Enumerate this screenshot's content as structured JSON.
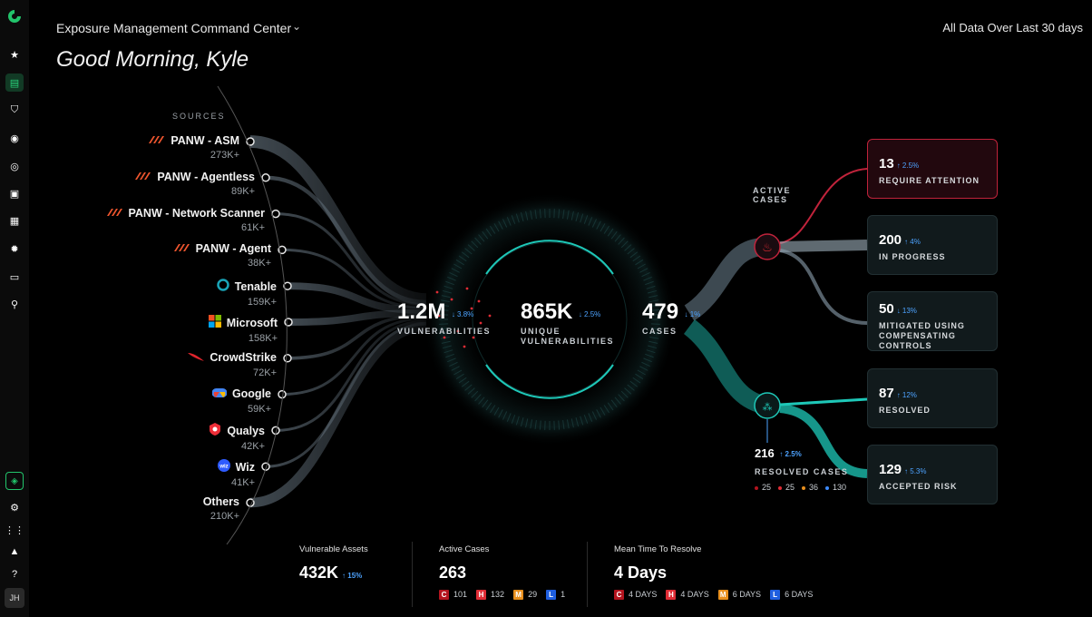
{
  "header": {
    "title": "Exposure Management Command Center",
    "range": "All Data Over Last 30 days",
    "greeting": "Good Morning, Kyle"
  },
  "sidebar": {
    "avatar": "JH"
  },
  "sources": {
    "heading": "SOURCES",
    "items": [
      {
        "name": "PANW - ASM",
        "count": "273K+",
        "logo": "panw-logo"
      },
      {
        "name": "PANW - Agentless",
        "count": "89K+",
        "logo": "panw-logo"
      },
      {
        "name": "PANW - Network Scanner",
        "count": "61K+",
        "logo": "panw-logo"
      },
      {
        "name": "PANW - Agent",
        "count": "38K+",
        "logo": "panw-logo"
      },
      {
        "name": "Tenable",
        "count": "159K+",
        "logo": "tenable-logo"
      },
      {
        "name": "Microsoft",
        "count": "158K+",
        "logo": "microsoft-logo"
      },
      {
        "name": "CrowdStrike",
        "count": "72K+",
        "logo": "crowdstrike-logo"
      },
      {
        "name": "Google",
        "count": "59K+",
        "logo": "google-logo"
      },
      {
        "name": "Qualys",
        "count": "42K+",
        "logo": "qualys-logo"
      },
      {
        "name": "Wiz",
        "count": "41K+",
        "logo": "wiz-logo"
      },
      {
        "name": "Others",
        "count": "210K+",
        "logo": ""
      }
    ]
  },
  "center": {
    "vulnerabilities": {
      "value": "1.2M",
      "delta": "↓ 3.8%",
      "label": "VULNERABILITIES"
    },
    "unique": {
      "value": "865K",
      "delta": "↓ 2.5%",
      "label1": "UNIQUE",
      "label2": "VULNERABILITIES"
    },
    "cases": {
      "value": "479",
      "delta": "↓ 1%",
      "label": "CASES"
    }
  },
  "active_cases_label": [
    "ACTIVE",
    "CASES"
  ],
  "cards": [
    {
      "value": "13",
      "delta": "↑ 2.5%",
      "label": [
        "REQUIRE ATTENTION"
      ],
      "alert": true
    },
    {
      "value": "200",
      "delta": "↑ 4%",
      "label": [
        "IN PROGRESS"
      ],
      "alert": false
    },
    {
      "value": "50",
      "delta": "↓ 13%",
      "label": [
        "MITIGATED USING",
        "COMPENSATING",
        "CONTROLS"
      ],
      "alert": false
    },
    {
      "value": "87",
      "delta": "↑ 12%",
      "label": [
        "RESOLVED"
      ],
      "alert": false
    },
    {
      "value": "129",
      "delta": "↑ 5.3%",
      "label": [
        "ACCEPTED RISK"
      ],
      "alert": false
    }
  ],
  "resolved": {
    "value": "216",
    "delta": "↑ 2.5%",
    "label": "RESOLVED CASES",
    "legend": [
      {
        "value": "25",
        "color": "#b3141e"
      },
      {
        "value": "25",
        "color": "#e02c35"
      },
      {
        "value": "36",
        "color": "#e88f1d"
      },
      {
        "value": "130",
        "color": "#3d8bff"
      }
    ]
  },
  "bottom": {
    "assets": {
      "title": "Vulnerable Assets",
      "value": "432K",
      "delta": "↑ 15%"
    },
    "active": {
      "title": "Active Cases",
      "value": "263",
      "sev": [
        {
          "k": "C",
          "v": "101"
        },
        {
          "k": "H",
          "v": "132"
        },
        {
          "k": "M",
          "v": "29"
        },
        {
          "k": "L",
          "v": "1"
        }
      ]
    },
    "mttr": {
      "title": "Mean Time To Resolve",
      "value": "4 Days",
      "sev": [
        {
          "k": "C",
          "v": "4 DAYS"
        },
        {
          "k": "H",
          "v": "4 DAYS"
        },
        {
          "k": "M",
          "v": "6 DAYS"
        },
        {
          "k": "L",
          "v": "6 DAYS"
        }
      ]
    }
  },
  "colors": {
    "accent_teal": "#18b5a8",
    "alert_red": "#c0233b",
    "link_blue": "#4da3ff"
  }
}
